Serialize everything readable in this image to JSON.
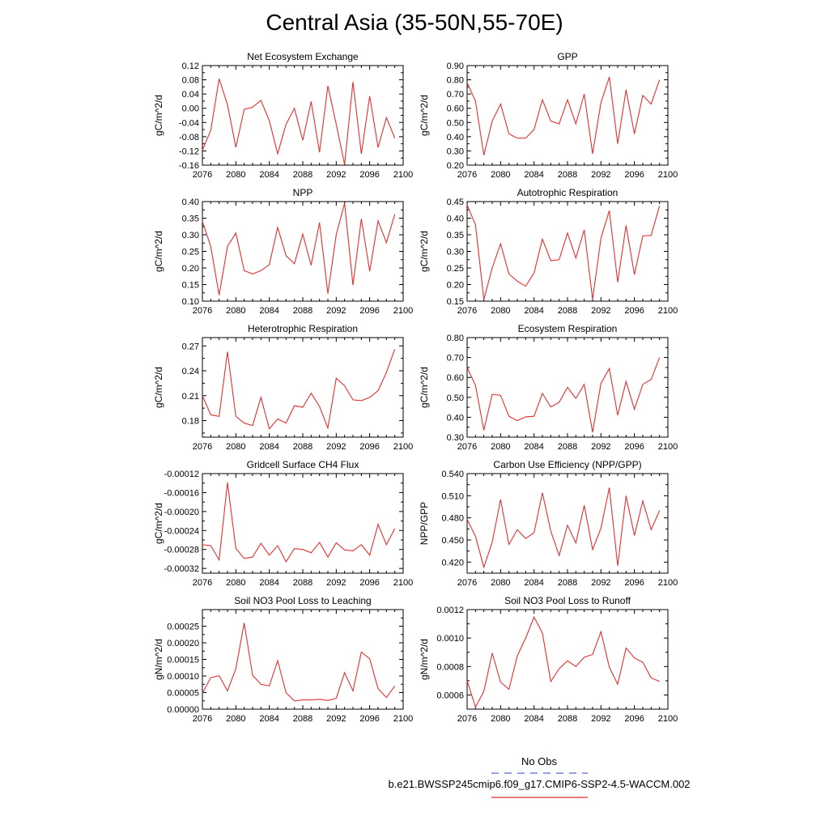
{
  "title": "Central Asia (35-50N,55-70E)",
  "legend": [
    {
      "label": "No Obs",
      "color": "#5566dd",
      "dash": true
    },
    {
      "label": "b.e21.BWSSP245cmip6.f09_g17.CMIP6-SSP2-4.5-WACCM.002",
      "color": "#e03030",
      "dash": false
    }
  ],
  "chart_data": [
    {
      "type": "line",
      "title": "Net Ecosystem Exchange",
      "ylabel": "gC/m^2/d",
      "x": [
        2076,
        2077,
        2078,
        2079,
        2080,
        2081,
        2082,
        2083,
        2084,
        2085,
        2086,
        2087,
        2088,
        2089,
        2090,
        2091,
        2092,
        2093,
        2094,
        2095,
        2096,
        2097,
        2098,
        2099
      ],
      "xlim": [
        2076,
        2100
      ],
      "xticks": [
        2076,
        2080,
        2084,
        2088,
        2092,
        2096,
        2100
      ],
      "ylim": [
        -0.16,
        0.12
      ],
      "yticks": [
        "-0.16",
        "-0.12",
        "-0.08",
        "-0.04",
        "0.00",
        "0.04",
        "0.08",
        "0.12"
      ],
      "series": [
        {
          "color": "#e03030",
          "values": [
            -0.118,
            -0.062,
            0.083,
            0.01,
            -0.11,
            -0.003,
            0.003,
            0.022,
            -0.035,
            -0.128,
            -0.045,
            0.0,
            -0.09,
            0.019,
            -0.124,
            0.063,
            -0.045,
            -0.158,
            0.074,
            -0.128,
            0.034,
            -0.11,
            -0.026,
            -0.084
          ]
        }
      ]
    },
    {
      "type": "line",
      "title": "GPP",
      "ylabel": "gC/m^2/d",
      "x": [
        2076,
        2077,
        2078,
        2079,
        2080,
        2081,
        2082,
        2083,
        2084,
        2085,
        2086,
        2087,
        2088,
        2089,
        2090,
        2091,
        2092,
        2093,
        2094,
        2095,
        2096,
        2097,
        2098,
        2099
      ],
      "xlim": [
        2076,
        2100
      ],
      "xticks": [
        2076,
        2080,
        2084,
        2088,
        2092,
        2096,
        2100
      ],
      "ylim": [
        0.2,
        0.9
      ],
      "yticks": [
        "0.20",
        "0.30",
        "0.40",
        "0.50",
        "0.60",
        "0.70",
        "0.80",
        "0.90"
      ],
      "series": [
        {
          "color": "#e03030",
          "values": [
            0.78,
            0.65,
            0.27,
            0.51,
            0.63,
            0.42,
            0.39,
            0.39,
            0.45,
            0.66,
            0.51,
            0.49,
            0.66,
            0.49,
            0.7,
            0.28,
            0.64,
            0.82,
            0.35,
            0.73,
            0.42,
            0.69,
            0.63,
            0.8
          ]
        }
      ]
    },
    {
      "type": "line",
      "title": "NPP",
      "ylabel": "gC/m^2/d",
      "x": [
        2076,
        2077,
        2078,
        2079,
        2080,
        2081,
        2082,
        2083,
        2084,
        2085,
        2086,
        2087,
        2088,
        2089,
        2090,
        2091,
        2092,
        2093,
        2094,
        2095,
        2096,
        2097,
        2098,
        2099
      ],
      "xlim": [
        2076,
        2100
      ],
      "xticks": [
        2076,
        2080,
        2084,
        2088,
        2092,
        2096,
        2100
      ],
      "ylim": [
        0.1,
        0.4
      ],
      "yticks": [
        "0.10",
        "0.15",
        "0.20",
        "0.25",
        "0.30",
        "0.35",
        "0.40"
      ],
      "series": [
        {
          "color": "#e03030",
          "values": [
            0.34,
            0.265,
            0.118,
            0.265,
            0.305,
            0.192,
            0.182,
            0.192,
            0.21,
            0.322,
            0.237,
            0.213,
            0.302,
            0.208,
            0.337,
            0.123,
            0.3,
            0.395,
            0.148,
            0.348,
            0.19,
            0.342,
            0.276,
            0.362
          ]
        }
      ]
    },
    {
      "type": "line",
      "title": "Autotrophic Respiration",
      "ylabel": "gC/m^2/d",
      "x": [
        2076,
        2077,
        2078,
        2079,
        2080,
        2081,
        2082,
        2083,
        2084,
        2085,
        2086,
        2087,
        2088,
        2089,
        2090,
        2091,
        2092,
        2093,
        2094,
        2095,
        2096,
        2097,
        2098,
        2099
      ],
      "xlim": [
        2076,
        2100
      ],
      "xticks": [
        2076,
        2080,
        2084,
        2088,
        2092,
        2096,
        2100
      ],
      "ylim": [
        0.15,
        0.45
      ],
      "yticks": [
        "0.15",
        "0.20",
        "0.25",
        "0.30",
        "0.35",
        "0.40",
        "0.45"
      ],
      "series": [
        {
          "color": "#e03030",
          "values": [
            0.44,
            0.38,
            0.155,
            0.25,
            0.323,
            0.232,
            0.21,
            0.195,
            0.235,
            0.337,
            0.272,
            0.275,
            0.355,
            0.28,
            0.365,
            0.155,
            0.34,
            0.423,
            0.207,
            0.378,
            0.23,
            0.347,
            0.348,
            0.437
          ]
        }
      ]
    },
    {
      "type": "line",
      "title": "Heterotrophic Respiration",
      "ylabel": "gC/m^2/d",
      "x": [
        2076,
        2077,
        2078,
        2079,
        2080,
        2081,
        2082,
        2083,
        2084,
        2085,
        2086,
        2087,
        2088,
        2089,
        2090,
        2091,
        2092,
        2093,
        2094,
        2095,
        2096,
        2097,
        2098,
        2099
      ],
      "xlim": [
        2076,
        2100
      ],
      "xticks": [
        2076,
        2080,
        2084,
        2088,
        2092,
        2096,
        2100
      ],
      "ylim": [
        0.16,
        0.28
      ],
      "yticks": [
        "0.18",
        "0.21",
        "0.24",
        "0.27"
      ],
      "series": [
        {
          "color": "#e03030",
          "values": [
            0.21,
            0.187,
            0.185,
            0.263,
            0.185,
            0.177,
            0.174,
            0.208,
            0.17,
            0.182,
            0.177,
            0.198,
            0.196,
            0.213,
            0.197,
            0.171,
            0.231,
            0.222,
            0.205,
            0.204,
            0.208,
            0.216,
            0.238,
            0.266
          ]
        }
      ]
    },
    {
      "type": "line",
      "title": "Ecosystem Respiration",
      "ylabel": "gC/m^2/d",
      "x": [
        2076,
        2077,
        2078,
        2079,
        2080,
        2081,
        2082,
        2083,
        2084,
        2085,
        2086,
        2087,
        2088,
        2089,
        2090,
        2091,
        2092,
        2093,
        2094,
        2095,
        2096,
        2097,
        2098,
        2099
      ],
      "xlim": [
        2076,
        2100
      ],
      "xticks": [
        2076,
        2080,
        2084,
        2088,
        2092,
        2096,
        2100
      ],
      "ylim": [
        0.3,
        0.8
      ],
      "yticks": [
        "0.30",
        "0.40",
        "0.50",
        "0.60",
        "0.70",
        "0.80"
      ],
      "series": [
        {
          "color": "#e03030",
          "values": [
            0.65,
            0.56,
            0.335,
            0.515,
            0.51,
            0.405,
            0.383,
            0.402,
            0.405,
            0.52,
            0.452,
            0.475,
            0.55,
            0.495,
            0.565,
            0.325,
            0.57,
            0.645,
            0.41,
            0.58,
            0.44,
            0.565,
            0.59,
            0.7
          ]
        }
      ]
    },
    {
      "type": "line",
      "title": "Gridcell Surface CH4 Flux",
      "ylabel": "gC/m^2/d",
      "x": [
        2076,
        2077,
        2078,
        2079,
        2080,
        2081,
        2082,
        2083,
        2084,
        2085,
        2086,
        2087,
        2088,
        2089,
        2090,
        2091,
        2092,
        2093,
        2094,
        2095,
        2096,
        2097,
        2098,
        2099
      ],
      "xlim": [
        2076,
        2100
      ],
      "xticks": [
        2076,
        2080,
        2084,
        2088,
        2092,
        2096,
        2100
      ],
      "ylim": [
        -0.00033,
        -0.00012
      ],
      "yticks": [
        "-0.00032",
        "-0.00028",
        "-0.00024",
        "-0.00020",
        "-0.00016",
        "-0.00012"
      ],
      "series": [
        {
          "color": "#e03030",
          "values": [
            -0.00027,
            -0.000272,
            -0.000302,
            -0.000139,
            -0.000278,
            -0.000299,
            -0.000296,
            -0.000267,
            -0.000292,
            -0.000272,
            -0.000306,
            -0.000278,
            -0.00028,
            -0.000287,
            -0.000265,
            -0.000296,
            -0.000266,
            -0.000281,
            -0.000283,
            -0.00027,
            -0.000292,
            -0.000227,
            -0.00027,
            -0.000236
          ]
        }
      ]
    },
    {
      "type": "line",
      "title": "Carbon Use Efficiency (NPP/GPP)",
      "ylabel": "NPP/GPP",
      "x": [
        2076,
        2077,
        2078,
        2079,
        2080,
        2081,
        2082,
        2083,
        2084,
        2085,
        2086,
        2087,
        2088,
        2089,
        2090,
        2091,
        2092,
        2093,
        2094,
        2095,
        2096,
        2097,
        2098,
        2099
      ],
      "xlim": [
        2076,
        2100
      ],
      "xticks": [
        2076,
        2080,
        2084,
        2088,
        2092,
        2096,
        2100
      ],
      "ylim": [
        0.405,
        0.54
      ],
      "yticks": [
        "0.420",
        "0.450",
        "0.480",
        "0.510",
        "0.540"
      ],
      "series": [
        {
          "color": "#e03030",
          "values": [
            0.478,
            0.455,
            0.413,
            0.447,
            0.505,
            0.444,
            0.464,
            0.452,
            0.46,
            0.514,
            0.462,
            0.429,
            0.47,
            0.446,
            0.497,
            0.437,
            0.466,
            0.521,
            0.415,
            0.51,
            0.456,
            0.503,
            0.464,
            0.49
          ]
        }
      ]
    },
    {
      "type": "line",
      "title": "Soil NO3 Pool Loss to Leaching",
      "ylabel": "gN/m^2/d",
      "x": [
        2076,
        2077,
        2078,
        2079,
        2080,
        2081,
        2082,
        2083,
        2084,
        2085,
        2086,
        2087,
        2088,
        2089,
        2090,
        2091,
        2092,
        2093,
        2094,
        2095,
        2096,
        2097,
        2098,
        2099
      ],
      "xlim": [
        2076,
        2100
      ],
      "xticks": [
        2076,
        2080,
        2084,
        2088,
        2092,
        2096,
        2100
      ],
      "ylim": [
        0.0,
        0.0003
      ],
      "yticks": [
        "0.00000",
        "0.00005",
        "0.00010",
        "0.00015",
        "0.00020",
        "0.00025"
      ],
      "series": [
        {
          "color": "#e03030",
          "values": [
            4.8e-05,
            9.5e-05,
            0.000101,
            5.5e-05,
            0.000122,
            0.00026,
            0.000102,
            7.5e-05,
            7e-05,
            0.000146,
            5e-05,
            2.5e-05,
            2.8e-05,
            2.8e-05,
            3e-05,
            2.6e-05,
            3.3e-05,
            0.00011,
            5.5e-05,
            0.000172,
            0.000152,
            6.2e-05,
            3.5e-05,
            7e-05
          ]
        }
      ]
    },
    {
      "type": "line",
      "title": "Soil NO3 Pool Loss to Runoff",
      "ylabel": "gN/m^2/d",
      "x": [
        2076,
        2077,
        2078,
        2079,
        2080,
        2081,
        2082,
        2083,
        2084,
        2085,
        2086,
        2087,
        2088,
        2089,
        2090,
        2091,
        2092,
        2093,
        2094,
        2095,
        2096,
        2097,
        2098,
        2099
      ],
      "xlim": [
        2076,
        2100
      ],
      "xticks": [
        2076,
        2080,
        2084,
        2088,
        2092,
        2096,
        2100
      ],
      "ylim": [
        0.0005,
        0.0012
      ],
      "yticks": [
        "0.0006",
        "0.0008",
        "0.0010",
        "0.0012"
      ],
      "series": [
        {
          "color": "#e03030",
          "values": [
            0.0007,
            0.000515,
            0.000625,
            0.000895,
            0.00069,
            0.00064,
            0.000875,
            0.001,
            0.001148,
            0.001035,
            0.000695,
            0.000785,
            0.00084,
            0.0008,
            0.000865,
            0.000885,
            0.001045,
            0.000795,
            0.000675,
            0.00093,
            0.00086,
            0.00083,
            0.00072,
            0.000695
          ]
        }
      ]
    }
  ]
}
